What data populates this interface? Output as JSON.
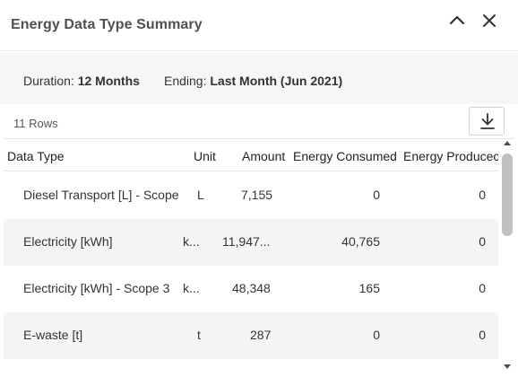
{
  "header": {
    "title": "Energy Data Type Summary"
  },
  "info": {
    "duration_label": "Duration:",
    "duration_value": "12 Months",
    "ending_label": "Ending:",
    "ending_value": "Last Month (Jun 2021)"
  },
  "rows_count": "11 Rows",
  "icons": {
    "collapse": "chevron-up-icon",
    "close": "close-icon",
    "download": "download-icon"
  },
  "table": {
    "columns": [
      "Data Type",
      "Unit",
      "Amount",
      "Energy Consumed",
      "Energy Producec"
    ],
    "rows": [
      {
        "type": "Diesel Transport [L] - Scope",
        "unit": "L",
        "amount": "7,155",
        "consumed": "0",
        "produced": "0"
      },
      {
        "type": "Electricity [kWh]",
        "unit": "k...",
        "amount": "11,947...",
        "consumed": "40,765",
        "produced": "0"
      },
      {
        "type": "Electricity [kWh] - Scope 3",
        "unit": "k...",
        "amount": "48,348",
        "consumed": "165",
        "produced": "0"
      },
      {
        "type": "E-waste [t]",
        "unit": "t",
        "amount": "287",
        "consumed": "0",
        "produced": "0"
      }
    ]
  }
}
